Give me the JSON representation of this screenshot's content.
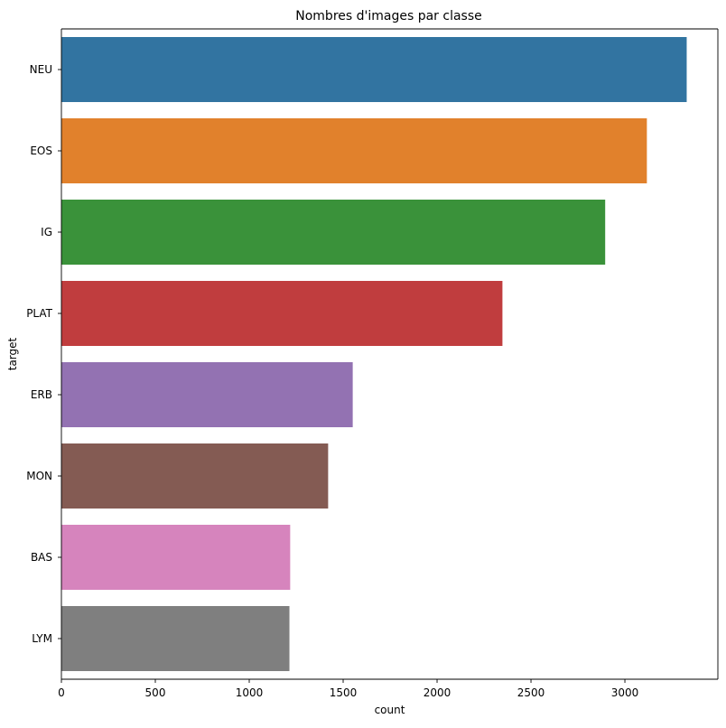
{
  "chart_data": {
    "type": "bar",
    "orientation": "horizontal",
    "title": "Nombres d'images par classe",
    "xlabel": "count",
    "ylabel": "target",
    "categories": [
      "NEU",
      "EOS",
      "IG",
      "PLAT",
      "ERB",
      "MON",
      "BAS",
      "LYM"
    ],
    "values": [
      3329,
      3117,
      2895,
      2348,
      1551,
      1420,
      1218,
      1214
    ],
    "colors": [
      "#3274a1",
      "#e1812c",
      "#3a923a",
      "#c03d3e",
      "#9372b2",
      "#845b53",
      "#d684bd",
      "#7f7f7f"
    ],
    "xlim": [
      0,
      3495
    ],
    "xticks": [
      0,
      500,
      1000,
      1500,
      2000,
      2500,
      3000
    ],
    "grid": false,
    "legend": "none"
  }
}
